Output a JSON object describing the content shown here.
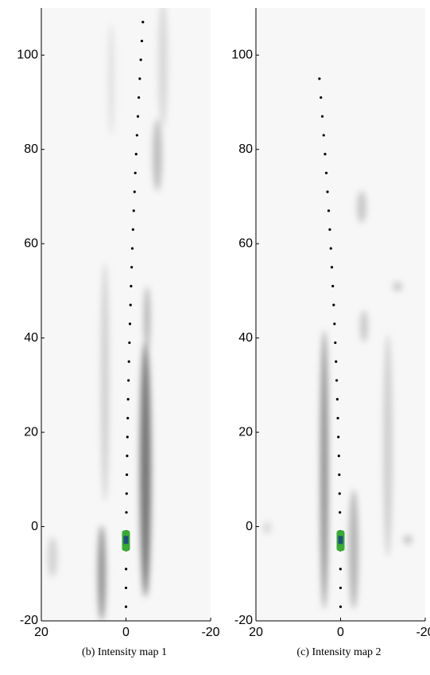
{
  "chart_data": [
    {
      "type": "scatter",
      "caption": "(b) Intensity map 1",
      "x": [
        0,
        0,
        -0.02,
        -0.04,
        -0.07,
        -0.1,
        -0.15,
        -0.2,
        -0.27,
        -0.34,
        -0.42,
        -0.5,
        -0.6,
        -0.7,
        -0.82,
        -0.94,
        -1.07,
        -1.2,
        -1.35,
        -1.5,
        -1.66,
        -1.83,
        -2.02,
        -2.2,
        -2.4,
        -2.6,
        -2.82,
        -3.03,
        -3.26,
        -3.5,
        -3.75,
        -4
      ],
      "y": [
        -17,
        -13,
        -9,
        -5,
        -1,
        3,
        7,
        11,
        15,
        19,
        23,
        27,
        31,
        35,
        39,
        43,
        47,
        51,
        55,
        59,
        63,
        67,
        71,
        75,
        79,
        83,
        87,
        91,
        95,
        99,
        103,
        107
      ],
      "color": "#000000",
      "vehicle_x": 0,
      "vehicle_y": -3,
      "vehicle_color": "#3aa935",
      "xlim": [
        20,
        -20
      ],
      "xticks": [
        20,
        0,
        -20
      ],
      "ylim": [
        -20,
        110
      ],
      "yticks": [
        -20,
        0,
        20,
        40,
        60,
        80,
        100
      ]
    },
    {
      "type": "scatter",
      "caption": "(c) Intensity map 2",
      "x": [
        0,
        0.01,
        0.03,
        0.06,
        0.1,
        0.16,
        0.23,
        0.31,
        0.41,
        0.52,
        0.64,
        0.77,
        0.92,
        1.08,
        1.25,
        1.44,
        1.63,
        1.84,
        2.07,
        2.3,
        2.55,
        2.81,
        3.09,
        3.37,
        3.67,
        3.99,
        4.31,
        4.65,
        5
      ],
      "y": [
        -17,
        -13,
        -9,
        -5,
        -1,
        3,
        7,
        11,
        15,
        19,
        23,
        27,
        31,
        35,
        39,
        43,
        47,
        51,
        55,
        59,
        63,
        67,
        71,
        75,
        79,
        83,
        87,
        91,
        95
      ],
      "color": "#000000",
      "vehicle_x": 0,
      "vehicle_y": -3,
      "vehicle_color": "#3aa935",
      "xlim": [
        20,
        -20
      ],
      "xticks": [
        20,
        0,
        -20
      ],
      "ylim": [
        -20,
        110
      ],
      "yticks": [
        -20,
        0,
        20,
        40,
        60,
        80,
        100
      ]
    }
  ]
}
